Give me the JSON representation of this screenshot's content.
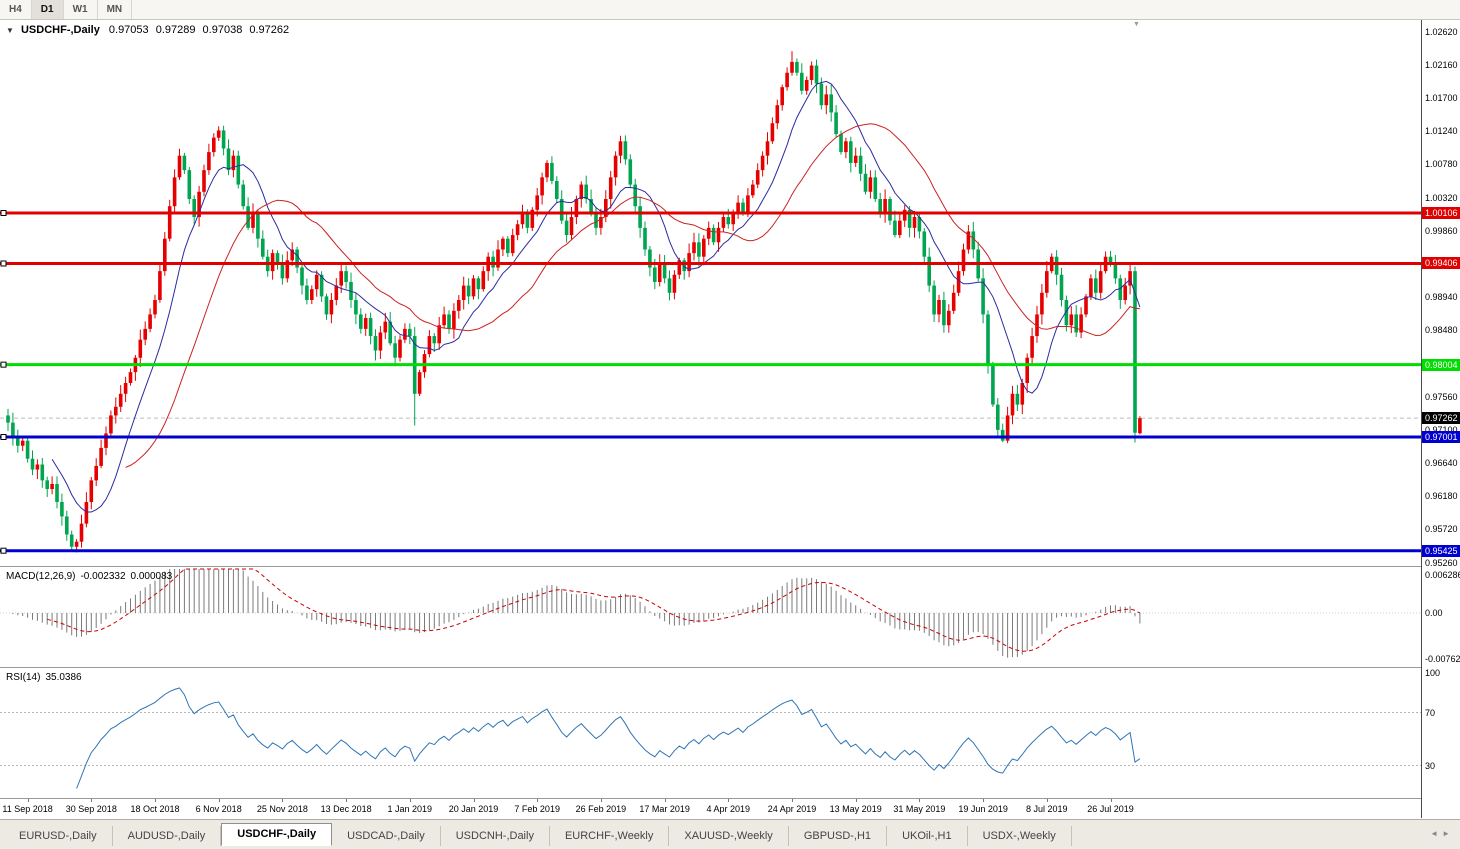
{
  "toolbar": {
    "timeframes": [
      {
        "label": "H4",
        "active": false
      },
      {
        "label": "D1",
        "active": true
      },
      {
        "label": "W1",
        "active": false
      },
      {
        "label": "MN",
        "active": false
      }
    ]
  },
  "icons": {
    "dropdown": "▼",
    "shift_marker": "▼",
    "tab_scroll_left": "◄",
    "tab_scroll_right": "►"
  },
  "chart_data": {
    "type": "candlestick",
    "title": {
      "symbol": "USDCHF-,Daily",
      "open": "0.97053",
      "high": "0.97289",
      "low": "0.97038",
      "close": "0.97262"
    },
    "ylim": [
      0.9526,
      1.0262
    ],
    "grid": false,
    "price_axis_labels": [
      "1.02620",
      "1.02160",
      "1.01700",
      "1.01240",
      "1.00780",
      "1.00320",
      "0.99860",
      "0.98940",
      "0.98480",
      "0.97560",
      "0.97100",
      "0.96640",
      "0.96180",
      "0.95720",
      "0.95260"
    ],
    "hlines": [
      {
        "label": "1.00106",
        "value": 1.00106,
        "color": "#e00000",
        "kind": "resistance"
      },
      {
        "label": "0.99406",
        "value": 0.99406,
        "color": "#e00000",
        "kind": "resistance"
      },
      {
        "label": "0.98004",
        "value": 0.98004,
        "color": "#00dd00",
        "kind": "support"
      },
      {
        "label": "0.97001",
        "value": 0.97001,
        "color": "#0000d0",
        "kind": "support"
      },
      {
        "label": "0.95425",
        "value": 0.95425,
        "color": "#0000d0",
        "kind": "support"
      }
    ],
    "current_price": {
      "label": "0.97262",
      "value": 0.97262,
      "color": "#000000"
    },
    "candles": {
      "up_color": "#e60000",
      "down_color": "#00a550",
      "first_open": 0.973,
      "closes": [
        0.972,
        0.97,
        0.9688,
        0.9695,
        0.967,
        0.9655,
        0.9662,
        0.964,
        0.9628,
        0.9635,
        0.961,
        0.959,
        0.9565,
        0.9548,
        0.9555,
        0.958,
        0.961,
        0.964,
        0.966,
        0.9685,
        0.9705,
        0.973,
        0.9742,
        0.976,
        0.9775,
        0.979,
        0.981,
        0.9835,
        0.985,
        0.987,
        0.989,
        0.993,
        0.9975,
        1.002,
        1.006,
        1.009,
        1.007,
        1.003,
        1.0005,
        1.004,
        1.007,
        1.0095,
        1.0115,
        1.0125,
        1.01,
        1.007,
        1.009,
        1.005,
        1.002,
        0.999,
        1.001,
        0.9975,
        0.995,
        0.993,
        0.9955,
        0.994,
        0.992,
        0.9945,
        0.996,
        0.9935,
        0.991,
        0.989,
        0.9905,
        0.9925,
        0.9895,
        0.987,
        0.989,
        0.991,
        0.993,
        0.9915,
        0.989,
        0.987,
        0.985,
        0.9865,
        0.984,
        0.982,
        0.9845,
        0.986,
        0.983,
        0.981,
        0.9835,
        0.985,
        0.984,
        0.976,
        0.979,
        0.9815,
        0.984,
        0.983,
        0.9855,
        0.987,
        0.985,
        0.9875,
        0.989,
        0.991,
        0.9895,
        0.992,
        0.9905,
        0.993,
        0.995,
        0.9935,
        0.996,
        0.9975,
        0.9955,
        0.998,
        0.9995,
        1.001,
        0.999,
        1.0015,
        1.0035,
        1.006,
        1.008,
        1.0055,
        1.003,
        1.0,
        0.998,
        1.0005,
        1.003,
        1.005,
        1.003,
        1.001,
        0.999,
        1.0005,
        1.003,
        1.006,
        1.009,
        1.011,
        1.0085,
        1.005,
        1.002,
        0.999,
        0.996,
        0.9935,
        0.9915,
        0.994,
        0.992,
        0.99,
        0.9925,
        0.9945,
        0.993,
        0.9955,
        0.997,
        0.995,
        0.9975,
        0.999,
        0.997,
        0.999,
        1.0005,
        0.9995,
        1.001,
        1.0025,
        1.001,
        1.0035,
        1.005,
        1.007,
        1.009,
        1.011,
        1.0135,
        1.016,
        1.0185,
        1.0205,
        1.022,
        1.0205,
        1.018,
        1.0195,
        1.0215,
        1.019,
        1.016,
        1.0175,
        1.015,
        1.012,
        1.0095,
        1.011,
        1.008,
        1.009,
        1.0065,
        1.004,
        1.006,
        1.003,
        1.001,
        1.003,
        1.0,
        0.998,
        1.0,
        1.0015,
        0.999,
        1.0005,
        0.9985,
        0.995,
        0.991,
        0.987,
        0.989,
        0.9855,
        0.9875,
        0.99,
        0.993,
        0.996,
        0.9985,
        0.996,
        0.992,
        0.987,
        0.98,
        0.9745,
        0.971,
        0.9695,
        0.973,
        0.976,
        0.9745,
        0.9775,
        0.981,
        0.984,
        0.987,
        0.99,
        0.993,
        0.995,
        0.9925,
        0.989,
        0.9855,
        0.987,
        0.9845,
        0.987,
        0.9895,
        0.992,
        0.99,
        0.993,
        0.995,
        0.994,
        0.992,
        0.989,
        0.991,
        0.993,
        0.9706,
        0.97262
      ],
      "overrides": {
        "13": {
          "low": 0.9543
        },
        "83": {
          "low": 0.9716
        },
        "160": {
          "high": 1.0235
        },
        "203": {
          "low": 0.9693
        },
        "231": {
          "open": 0.97053,
          "high": 0.97289,
          "low": 0.97038
        }
      }
    },
    "moving_averages": [
      {
        "period": 10,
        "color": "#2b2ba0"
      },
      {
        "period": 25,
        "color": "#cc2222"
      }
    ],
    "macd": {
      "label": "MACD(12,26,9)",
      "value_main": "-0.002332",
      "value_signal": "0.000083",
      "params": [
        12,
        26,
        9
      ],
      "axis": [
        {
          "text": "0.006286",
          "value": 0.006286
        },
        {
          "text": "0.00",
          "value": 0
        },
        {
          "text": "-0.007620",
          "value": -0.00762
        }
      ],
      "histogram_color": "#7a7a7a",
      "signal_color": "#cc0000"
    },
    "rsi": {
      "label": "RSI(14)",
      "value": "35.0386",
      "period": 14,
      "axis": [
        {
          "text": "100",
          "value": 100
        },
        {
          "text": "70",
          "value": 70
        },
        {
          "text": "30",
          "value": 30
        }
      ],
      "levels": [
        70,
        30
      ],
      "line_color": "#2e75b6"
    },
    "time_axis": [
      {
        "index": 4,
        "text": "11 Sep 2018"
      },
      {
        "index": 17,
        "text": "30 Sep 2018"
      },
      {
        "index": 30,
        "text": "18 Oct 2018"
      },
      {
        "index": 43,
        "text": "6 Nov 2018"
      },
      {
        "index": 56,
        "text": "25 Nov 2018"
      },
      {
        "index": 69,
        "text": "13 Dec 2018"
      },
      {
        "index": 82,
        "text": "1 Jan 2019"
      },
      {
        "index": 95,
        "text": "20 Jan 2019"
      },
      {
        "index": 108,
        "text": "7 Feb 2019"
      },
      {
        "index": 121,
        "text": "26 Feb 2019"
      },
      {
        "index": 134,
        "text": "17 Mar 2019"
      },
      {
        "index": 147,
        "text": "4 Apr 2019"
      },
      {
        "index": 160,
        "text": "24 Apr 2019"
      },
      {
        "index": 173,
        "text": "13 May 2019"
      },
      {
        "index": 186,
        "text": "31 May 2019"
      },
      {
        "index": 199,
        "text": "19 Jun 2019"
      },
      {
        "index": 212,
        "text": "8 Jul 2019"
      },
      {
        "index": 225,
        "text": "26 Jul 2019"
      }
    ]
  },
  "tabs": [
    {
      "label": "EURUSD-,Daily",
      "active": false
    },
    {
      "label": "AUDUSD-,Daily",
      "active": false
    },
    {
      "label": "USDCHF-,Daily",
      "active": true
    },
    {
      "label": "USDCAD-,Daily",
      "active": false
    },
    {
      "label": "USDCNH-,Daily",
      "active": false
    },
    {
      "label": "EURCHF-,Weekly",
      "active": false
    },
    {
      "label": "XAUUSD-,Weekly",
      "active": false
    },
    {
      "label": "GBPUSD-,H1",
      "active": false
    },
    {
      "label": "UKOil-,H1",
      "active": false
    },
    {
      "label": "USDX-,Weekly",
      "active": false
    }
  ]
}
